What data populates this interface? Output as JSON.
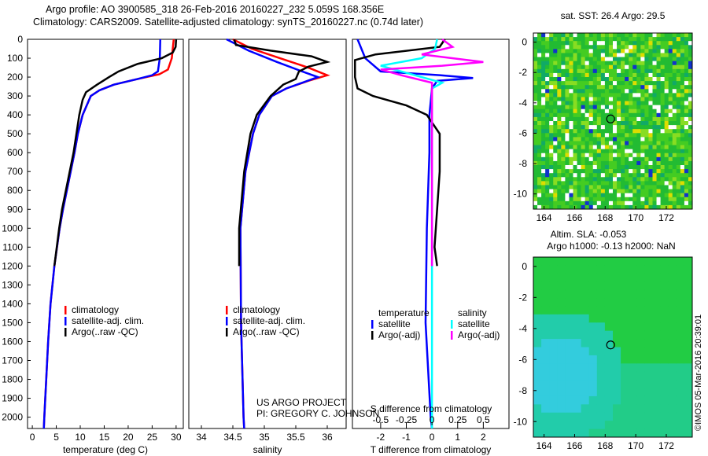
{
  "header": {
    "line1": "Argo profile: AO 3900585_318 26-Feb-2016 20160227_232 5.059S 168.356E",
    "line2": "Climatology: CARS2009. Satellite-adjusted climatology: synTS_20160227.nc (0.74d later)"
  },
  "colors": {
    "clim": "#ff0000",
    "sat": "#0000ff",
    "argo": "#000000",
    "ssat": "#00ffff",
    "sargo": "#ff00ff"
  },
  "chart_data": [
    {
      "type": "line",
      "title": "temperature",
      "xlabel": "temperature (deg C)",
      "xlim": [
        -1,
        31.5
      ],
      "xticks": [
        0,
        5,
        10,
        15,
        20,
        25,
        30
      ],
      "ylim": [
        0,
        2060
      ],
      "yticks": [
        0,
        100,
        200,
        300,
        400,
        500,
        600,
        700,
        800,
        900,
        1000,
        1100,
        1200,
        1300,
        1400,
        1500,
        1600,
        1700,
        1800,
        1900,
        2000
      ],
      "legend": [
        "climatology",
        "satellite-adj. clim.",
        "Argo(..raw -QC)"
      ],
      "series": [
        {
          "name": "climatology",
          "color": "clim",
          "points": [
            [
              0,
              29.5
            ],
            [
              100,
              29.1
            ],
            [
              160,
              28.3
            ],
            [
              185,
              26.5
            ],
            [
              210,
              22
            ],
            [
              240,
              17
            ],
            [
              270,
              14
            ],
            [
              300,
              12.2
            ],
            [
              400,
              10.5
            ],
            [
              500,
              9.5
            ],
            [
              600,
              8.8
            ],
            [
              700,
              8
            ],
            [
              800,
              7.2
            ],
            [
              900,
              6.4
            ],
            [
              1000,
              5.7
            ],
            [
              1200,
              4.6
            ],
            [
              1400,
              3.8
            ],
            [
              1600,
              3.3
            ],
            [
              1800,
              2.9
            ],
            [
              2000,
              2.5
            ],
            [
              2060,
              2.4
            ]
          ]
        },
        {
          "name": "satellite-adj. clim.",
          "color": "sat",
          "points": [
            [
              0,
              26.7
            ],
            [
              100,
              26.6
            ],
            [
              170,
              26.2
            ],
            [
              190,
              25
            ],
            [
              210,
              22
            ],
            [
              240,
              17
            ],
            [
              270,
              14
            ],
            [
              300,
              12.2
            ],
            [
              400,
              10.5
            ],
            [
              500,
              9.5
            ],
            [
              600,
              8.8
            ],
            [
              700,
              8
            ],
            [
              800,
              7.2
            ],
            [
              900,
              6.4
            ],
            [
              1000,
              5.7
            ],
            [
              1200,
              4.6
            ],
            [
              1400,
              3.8
            ],
            [
              1600,
              3.3
            ],
            [
              1800,
              2.9
            ],
            [
              2000,
              2.5
            ],
            [
              2060,
              2.4
            ]
          ]
        },
        {
          "name": "Argo(..raw -QC)",
          "color": "argo",
          "points": [
            [
              0,
              30
            ],
            [
              40,
              29.9
            ],
            [
              70,
              29.3
            ],
            [
              100,
              27
            ],
            [
              130,
              22
            ],
            [
              170,
              18
            ],
            [
              200,
              16
            ],
            [
              240,
              13.5
            ],
            [
              280,
              11.2
            ],
            [
              320,
              10.5
            ],
            [
              400,
              9.8
            ],
            [
              500,
              9.2
            ],
            [
              600,
              8.6
            ],
            [
              700,
              7.8
            ],
            [
              800,
              7
            ],
            [
              900,
              6.2
            ],
            [
              1000,
              5.6
            ],
            [
              1100,
              5.1
            ],
            [
              1200,
              4.6
            ]
          ]
        }
      ]
    },
    {
      "type": "line",
      "title": "salinity",
      "xlabel": "salinity",
      "xlim": [
        33.8,
        36.3
      ],
      "xticks": [
        34,
        34.5,
        35,
        35.5,
        36
      ],
      "ylim": [
        0,
        2060
      ],
      "legend": [
        "climatology",
        "satellite-adj. clim.",
        "Argo(..raw -QC)"
      ],
      "annotation": [
        "US ARGO PROJECT",
        "PI: GREGORY C. JOHNSON"
      ],
      "series": [
        {
          "name": "climatology",
          "color": "clim",
          "points": [
            [
              0,
              34.5
            ],
            [
              50,
              34.8
            ],
            [
              100,
              35.25
            ],
            [
              150,
              35.7
            ],
            [
              190,
              36
            ],
            [
              220,
              35.7
            ],
            [
              260,
              35.35
            ],
            [
              300,
              35.12
            ],
            [
              400,
              34.92
            ],
            [
              500,
              34.82
            ],
            [
              700,
              34.7
            ],
            [
              1000,
              34.62
            ],
            [
              1500,
              34.63
            ],
            [
              2000,
              34.67
            ],
            [
              2060,
              34.68
            ]
          ]
        },
        {
          "name": "satellite-adj. clim.",
          "color": "sat",
          "points": [
            [
              0,
              34.4
            ],
            [
              60,
              34.75
            ],
            [
              120,
              35.2
            ],
            [
              170,
              35.6
            ],
            [
              200,
              35.85
            ],
            [
              230,
              35.6
            ],
            [
              260,
              35.35
            ],
            [
              300,
              35.12
            ],
            [
              400,
              34.92
            ],
            [
              500,
              34.82
            ],
            [
              700,
              34.7
            ],
            [
              1000,
              34.62
            ],
            [
              1500,
              34.63
            ],
            [
              2000,
              34.67
            ],
            [
              2060,
              34.68
            ]
          ]
        },
        {
          "name": "Argo(..raw -QC)",
          "color": "argo",
          "points": [
            [
              0,
              34.52
            ],
            [
              30,
              34.55
            ],
            [
              60,
              35.1
            ],
            [
              90,
              35.75
            ],
            [
              120,
              36
            ],
            [
              145,
              35.7
            ],
            [
              170,
              35.55
            ],
            [
              210,
              35.5
            ],
            [
              240,
              35.3
            ],
            [
              300,
              35.1
            ],
            [
              400,
              34.88
            ],
            [
              500,
              34.78
            ],
            [
              700,
              34.68
            ],
            [
              1000,
              34.6
            ],
            [
              1200,
              34.6
            ]
          ]
        }
      ]
    },
    {
      "type": "line",
      "title": "difference from climatology",
      "xlabel": "T difference from climatology",
      "xlabel2": "S difference from climatology",
      "xlim": [
        -3.1,
        3
      ],
      "xticks": [
        -2,
        -1,
        0,
        1,
        2
      ],
      "xticks2": [
        -0.5,
        -0.25,
        0,
        0.25,
        0.5
      ],
      "legend": {
        "temperature": [
          "satellite",
          "Argo(-adj)"
        ],
        "salinity": [
          "satellite",
          "Argo(-adj)"
        ],
        "headers": [
          "temperature",
          "salinity"
        ]
      },
      "series": [
        {
          "name": "T satellite",
          "color": "sat",
          "points": [
            [
              0,
              -2.9
            ],
            [
              100,
              -2.6
            ],
            [
              170,
              -2
            ],
            [
              190,
              0.3
            ],
            [
              205,
              1.6
            ],
            [
              220,
              0.2
            ],
            [
              260,
              0
            ],
            [
              400,
              -0.1
            ],
            [
              600,
              -0.1
            ],
            [
              1000,
              -0.2
            ],
            [
              1500,
              -0.25
            ],
            [
              2000,
              -0.05
            ],
            [
              2060,
              0
            ]
          ]
        },
        {
          "name": "T Argo(-adj)",
          "color": "argo",
          "points": [
            [
              0,
              0.5
            ],
            [
              40,
              0.3
            ],
            [
              80,
              -2.2
            ],
            [
              110,
              -3
            ],
            [
              200,
              -3
            ],
            [
              260,
              -2.9
            ],
            [
              300,
              -2.3
            ],
            [
              350,
              -1
            ],
            [
              400,
              -0.2
            ],
            [
              500,
              0.3
            ],
            [
              700,
              0.3
            ],
            [
              900,
              0.2
            ],
            [
              1100,
              0.1
            ],
            [
              1200,
              0.2
            ]
          ]
        },
        {
          "name": "S satellite",
          "color": "ssat",
          "points": [
            [
              0,
              0.05
            ],
            [
              50,
              0.03
            ],
            [
              100,
              -0.1
            ],
            [
              140,
              -0.5
            ],
            [
              170,
              -0.3
            ],
            [
              200,
              -0.1
            ],
            [
              230,
              0.1
            ],
            [
              260,
              0
            ],
            [
              400,
              0
            ],
            [
              1000,
              0
            ],
            [
              2000,
              0
            ],
            [
              2060,
              0
            ]
          ]
        },
        {
          "name": "S Argo(-adj)",
          "color": "sargo",
          "points": [
            [
              0,
              0.1
            ],
            [
              40,
              0.2
            ],
            [
              80,
              -0.1
            ],
            [
              120,
              0.5
            ],
            [
              140,
              0.1
            ],
            [
              160,
              -0.5
            ],
            [
              190,
              -0.3
            ],
            [
              230,
              0
            ],
            [
              300,
              0
            ],
            [
              600,
              0
            ],
            [
              1000,
              0
            ],
            [
              1200,
              0
            ]
          ]
        }
      ]
    },
    {
      "type": "heatmap",
      "title": "sat. SST: 26.4 Argo: 29.5",
      "xlim": [
        163.3,
        173.7
      ],
      "ylim": [
        -11,
        0.6
      ],
      "xticks": [
        164,
        166,
        168,
        170,
        172
      ],
      "yticks": [
        0,
        -2,
        -4,
        -6,
        -8,
        -10
      ],
      "marker": [
        168.356,
        -5.059
      ]
    },
    {
      "type": "heatmap",
      "title": "Altim. SLA: -0.053",
      "subtitle": "Argo h1000: -0.13 h2000: NaN",
      "xlim": [
        163.3,
        173.7
      ],
      "ylim": [
        -11,
        0.6
      ],
      "xticks": [
        164,
        166,
        168,
        170,
        172
      ],
      "yticks": [
        0,
        -2,
        -4,
        -6,
        -8,
        -10
      ],
      "marker": [
        168.356,
        -5.059
      ]
    }
  ],
  "footer": {
    "stamp": "©IMOS 05-Mar-2016 20:39:01"
  }
}
